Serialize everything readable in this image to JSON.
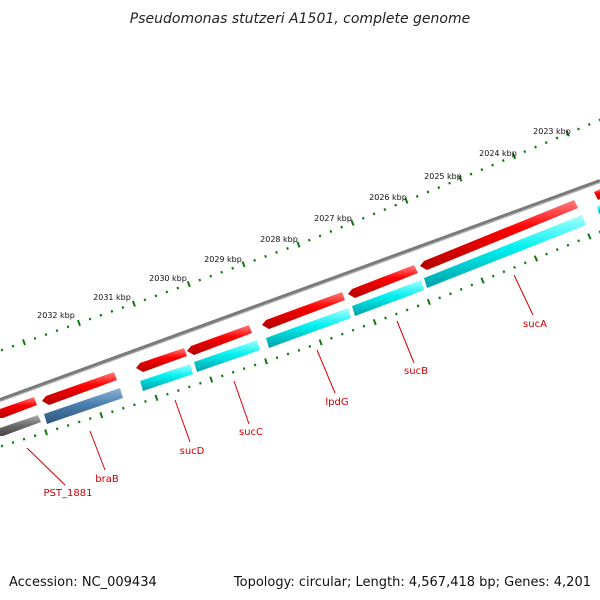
{
  "title": "Pseudomonas stutzeri A1501, complete genome",
  "footer": {
    "accession": "Accession: NC_009434",
    "summary": "Topology: circular; Length: 4,567,418 bp; Genes: 4,201"
  },
  "colors": {
    "forward_cds": "#ee0000",
    "reverse_cds": "#00e5ee",
    "reverse_cds_alt": "#4a7fb0",
    "backbone": "#808080",
    "pseudo": "#606060",
    "tick": "#117711",
    "label_red": "#cc0000"
  },
  "scale": {
    "unit": "kbp",
    "major_ticks": [
      {
        "kbp": 2023,
        "label": "2023 kbp"
      },
      {
        "kbp": 2024,
        "label": "2024 kbp"
      },
      {
        "kbp": 2025,
        "label": "2025 kbp"
      },
      {
        "kbp": 2026,
        "label": "2026 kbp"
      },
      {
        "kbp": 2027,
        "label": "2027 kbp"
      },
      {
        "kbp": 2028,
        "label": "2028 kbp"
      },
      {
        "kbp": 2029,
        "label": "2029 kbp"
      },
      {
        "kbp": 2030,
        "label": "2030 kbp"
      },
      {
        "kbp": 2031,
        "label": "2031 kbp"
      },
      {
        "kbp": 2032,
        "label": "2032 kbp"
      }
    ]
  },
  "labels": [
    {
      "name": "PST_1881"
    },
    {
      "name": "braB"
    },
    {
      "name": "sucD"
    },
    {
      "name": "sucC"
    },
    {
      "name": "lpdG"
    },
    {
      "name": "sucB"
    },
    {
      "name": "sucA"
    }
  ]
}
